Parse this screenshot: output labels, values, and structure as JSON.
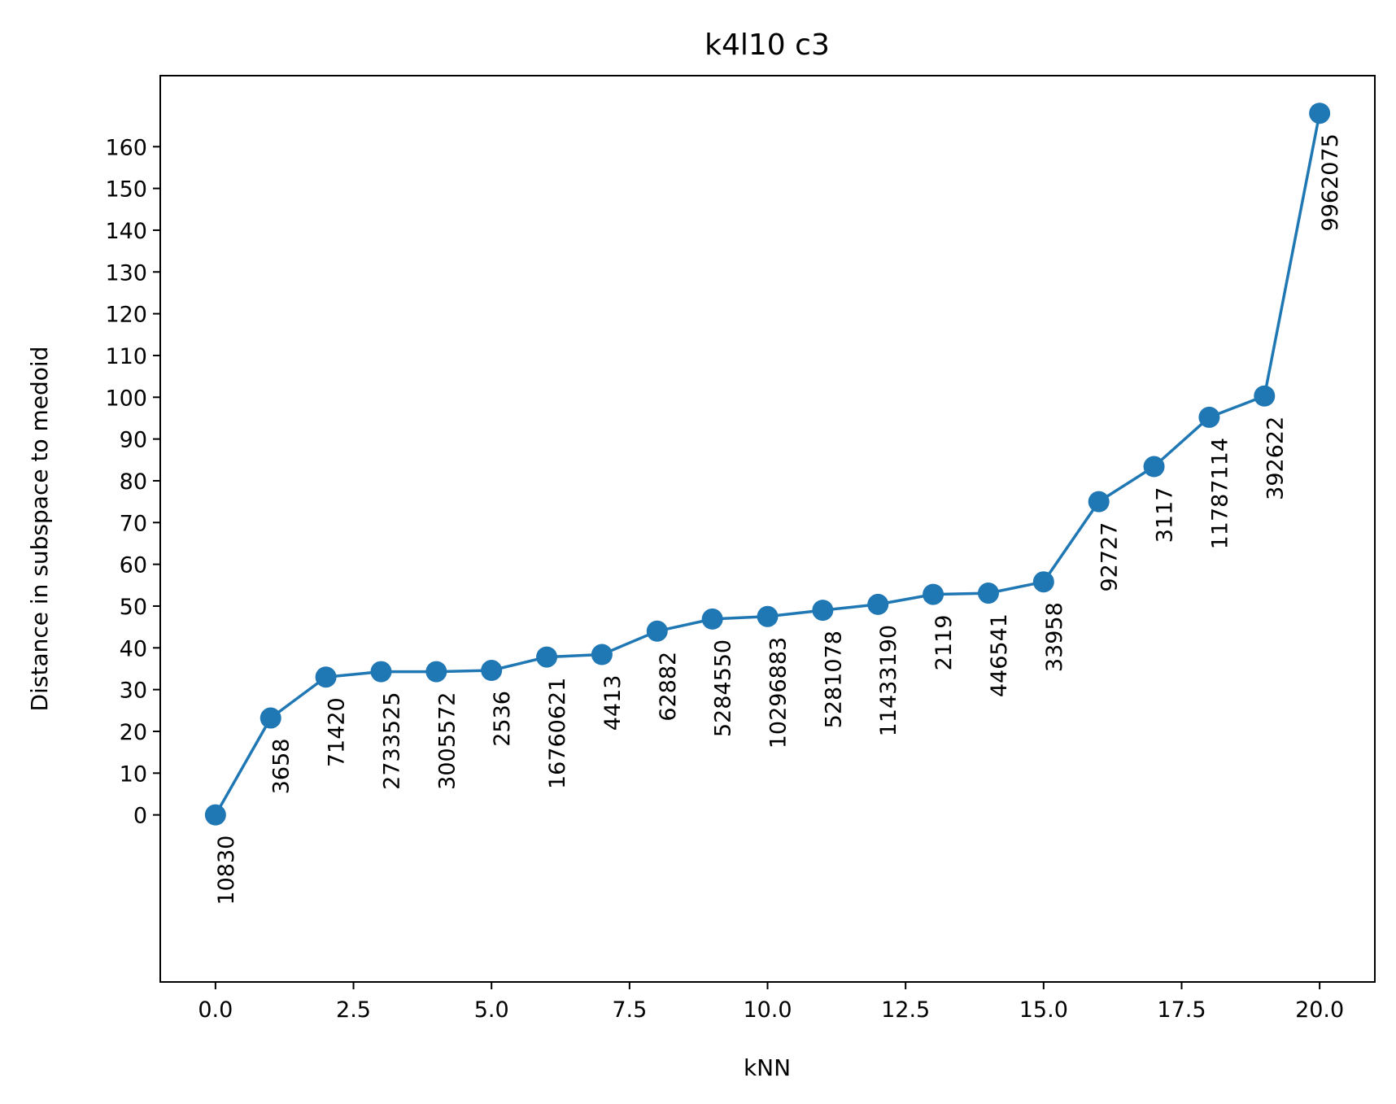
{
  "chart_data": {
    "type": "line",
    "title": "k4l10 c3",
    "xlabel": "kNN",
    "ylabel": "Distance in subspace to medoid",
    "xlim": [
      -1.0,
      21.0
    ],
    "ylim": [
      -40,
      177
    ],
    "xticks": [
      0.0,
      2.5,
      5.0,
      7.5,
      10.0,
      12.5,
      15.0,
      17.5,
      20.0
    ],
    "xtick_labels": [
      "0.0",
      "2.5",
      "5.0",
      "7.5",
      "10.0",
      "12.5",
      "15.0",
      "17.5",
      "20.0"
    ],
    "yticks": [
      0,
      10,
      20,
      30,
      40,
      50,
      60,
      70,
      80,
      90,
      100,
      110,
      120,
      130,
      140,
      150,
      160
    ],
    "ytick_labels": [
      "0",
      "10",
      "20",
      "30",
      "40",
      "50",
      "60",
      "70",
      "80",
      "90",
      "100",
      "110",
      "120",
      "130",
      "140",
      "150",
      "160"
    ],
    "grid": false,
    "color": "#1f77b4",
    "x": [
      0,
      1,
      2,
      3,
      4,
      5,
      6,
      7,
      8,
      9,
      10,
      11,
      12,
      13,
      14,
      15,
      16,
      17,
      18,
      19,
      20
    ],
    "y": [
      0,
      23.2,
      33.0,
      34.3,
      34.3,
      34.6,
      37.8,
      38.4,
      44.0,
      46.9,
      47.5,
      49.0,
      50.4,
      52.8,
      53.1,
      55.8,
      75.0,
      83.4,
      95.2,
      100.3,
      168.0
    ],
    "point_labels": [
      "10830",
      "3658",
      "71420",
      "2733525",
      "3005572",
      "2536",
      "16760621",
      "4413",
      "62882",
      "5284550",
      "10296883",
      "5281078",
      "11433190",
      "2119",
      "446541",
      "33958",
      "92727",
      "3117",
      "11787114",
      "392622",
      "9962075"
    ]
  }
}
